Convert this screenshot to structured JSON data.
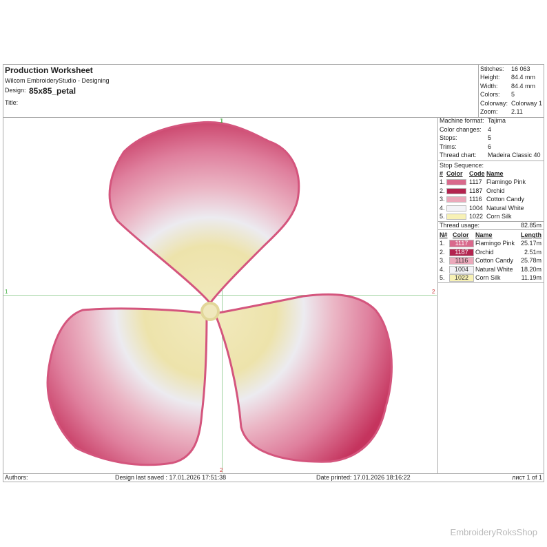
{
  "header": {
    "title": "Production Worksheet",
    "software": "Wilcom EmbroideryStudio - Designing",
    "design_label": "Design:",
    "design_name": "85x85_petal",
    "title_label": "Title:"
  },
  "stats": [
    {
      "label": "Stitches:",
      "value": "16 063"
    },
    {
      "label": "Height:",
      "value": "84.4 mm"
    },
    {
      "label": "Width:",
      "value": "84.4 mm"
    },
    {
      "label": "Colors:",
      "value": "5"
    },
    {
      "label": "Colorway:",
      "value": "Colorway 1"
    },
    {
      "label": "Zoom:",
      "value": "2.11"
    }
  ],
  "machine": [
    {
      "label": "Machine format:",
      "value": "Tajima"
    },
    {
      "label": "Color changes:",
      "value": "4"
    },
    {
      "label": "Stops:",
      "value": "5"
    },
    {
      "label": "Trims:",
      "value": "6"
    },
    {
      "label": "Thread chart:",
      "value": "Madeira Classic 40"
    }
  ],
  "stop_sequence": {
    "title": "Stop Sequence:",
    "columns": [
      "#",
      "Color",
      "Code",
      "Name"
    ],
    "rows": [
      {
        "num": "1.",
        "code": "1117",
        "name": "Flamingo Pink",
        "color": "#d9698c"
      },
      {
        "num": "2.",
        "code": "1187",
        "name": "Orchid",
        "color": "#b3244f"
      },
      {
        "num": "3.",
        "code": "1116",
        "name": "Cotton Candy",
        "color": "#eba9bb"
      },
      {
        "num": "4.",
        "code": "1004",
        "name": "Natural White",
        "color": "#f3f3f7"
      },
      {
        "num": "5.",
        "code": "1022",
        "name": "Corn Silk",
        "color": "#f7f1b5"
      }
    ]
  },
  "thread_usage": {
    "title": "Thread usage:",
    "total": "82.85m",
    "columns": [
      "N#",
      "Color",
      "Name",
      "Length"
    ],
    "rows": [
      {
        "num": "1.",
        "code": "1117",
        "name": "Flamingo Pink",
        "length": "25.17m",
        "color": "#d9698c",
        "text_color": "#ffffff"
      },
      {
        "num": "2.",
        "code": "1187",
        "name": "Orchid",
        "length": "2.51m",
        "color": "#b3244f",
        "text_color": "#ffffff"
      },
      {
        "num": "3.",
        "code": "1116",
        "name": "Cotton Candy",
        "length": "25.78m",
        "color": "#eba9bb",
        "text_color": "#333333"
      },
      {
        "num": "4.",
        "code": "1004",
        "name": "Natural White",
        "length": "18.20m",
        "color": "#f3f3f7",
        "text_color": "#333333"
      },
      {
        "num": "5.",
        "code": "1022",
        "name": "Corn Silk",
        "length": "11.19m",
        "color": "#f7f1b5",
        "text_color": "#333333"
      }
    ]
  },
  "markers": {
    "top": "1",
    "left": "1",
    "right": "2",
    "bottom": "2"
  },
  "footer": {
    "authors": "Authors:",
    "saved": "Design last saved : 17.01.2026 17:51:38",
    "printed": "Date printed: 17.01.2026 18:16:22",
    "sheet": "лист 1 of 1"
  },
  "watermark": "EmbroideryRoksShop"
}
